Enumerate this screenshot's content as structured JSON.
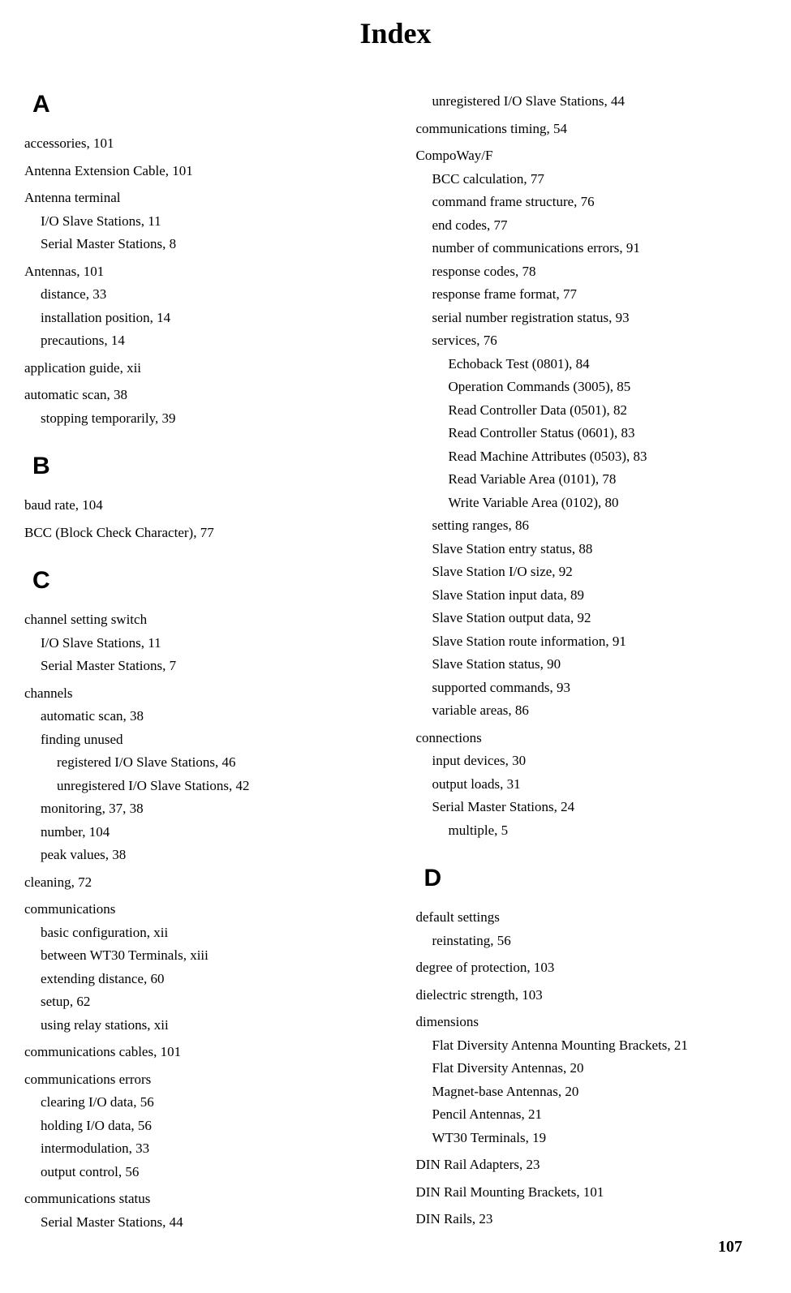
{
  "title": "Index",
  "pageNumber": "107",
  "columns": {
    "left": [
      {
        "letter": "A",
        "groups": [
          {
            "entries": [
              {
                "level": 0,
                "term": "accessories",
                "pages": "101"
              }
            ]
          },
          {
            "entries": [
              {
                "level": 0,
                "term": "Antenna Extension Cable",
                "pages": "101"
              }
            ]
          },
          {
            "entries": [
              {
                "level": 0,
                "term": "Antenna terminal",
                "pages": ""
              },
              {
                "level": 1,
                "term": "I/O Slave Stations",
                "pages": "11"
              },
              {
                "level": 1,
                "term": "Serial Master Stations",
                "pages": "8"
              }
            ]
          },
          {
            "entries": [
              {
                "level": 0,
                "term": "Antennas",
                "pages": "101"
              },
              {
                "level": 1,
                "term": "distance",
                "pages": "33"
              },
              {
                "level": 1,
                "term": "installation position",
                "pages": "14"
              },
              {
                "level": 1,
                "term": "precautions",
                "pages": "14"
              }
            ]
          },
          {
            "entries": [
              {
                "level": 0,
                "term": "application guide",
                "pages": "xii"
              }
            ]
          },
          {
            "entries": [
              {
                "level": 0,
                "term": "automatic scan",
                "pages": "38"
              },
              {
                "level": 1,
                "term": "stopping temporarily",
                "pages": "39"
              }
            ]
          }
        ]
      },
      {
        "letter": "B",
        "groups": [
          {
            "entries": [
              {
                "level": 0,
                "term": "baud rate",
                "pages": "104"
              }
            ]
          },
          {
            "entries": [
              {
                "level": 0,
                "term": "BCC (Block Check Character)",
                "pages": "77"
              }
            ]
          }
        ]
      },
      {
        "letter": "C",
        "groups": [
          {
            "entries": [
              {
                "level": 0,
                "term": "channel setting switch",
                "pages": ""
              },
              {
                "level": 1,
                "term": "I/O Slave Stations",
                "pages": "11"
              },
              {
                "level": 1,
                "term": "Serial Master Stations",
                "pages": "7"
              }
            ]
          },
          {
            "entries": [
              {
                "level": 0,
                "term": "channels",
                "pages": ""
              },
              {
                "level": 1,
                "term": "automatic scan",
                "pages": "38"
              },
              {
                "level": 1,
                "term": "finding unused",
                "pages": ""
              },
              {
                "level": 2,
                "term": "registered I/O Slave Stations",
                "pages": "46"
              },
              {
                "level": 2,
                "term": "unregistered I/O Slave Stations",
                "pages": "42"
              },
              {
                "level": 1,
                "term": "monitoring",
                "pages": "37, 38"
              },
              {
                "level": 1,
                "term": "number",
                "pages": "104"
              },
              {
                "level": 1,
                "term": "peak values",
                "pages": "38"
              }
            ]
          },
          {
            "entries": [
              {
                "level": 0,
                "term": "cleaning",
                "pages": "72"
              }
            ]
          },
          {
            "entries": [
              {
                "level": 0,
                "term": "communications",
                "pages": ""
              },
              {
                "level": 1,
                "term": "basic configuration",
                "pages": "xii"
              },
              {
                "level": 1,
                "term": "between WT30 Terminals",
                "pages": "xiii"
              },
              {
                "level": 1,
                "term": "extending distance",
                "pages": "60"
              },
              {
                "level": 1,
                "term": "setup",
                "pages": "62"
              },
              {
                "level": 1,
                "term": "using relay stations",
                "pages": "xii"
              }
            ]
          },
          {
            "entries": [
              {
                "level": 0,
                "term": "communications cables",
                "pages": "101"
              }
            ]
          },
          {
            "entries": [
              {
                "level": 0,
                "term": "communications errors",
                "pages": ""
              },
              {
                "level": 1,
                "term": "clearing I/O data",
                "pages": "56"
              },
              {
                "level": 1,
                "term": "holding I/O data",
                "pages": "56"
              },
              {
                "level": 1,
                "term": "intermodulation",
                "pages": "33"
              },
              {
                "level": 1,
                "term": "output control",
                "pages": "56"
              }
            ]
          },
          {
            "entries": [
              {
                "level": 0,
                "term": "communications status",
                "pages": ""
              },
              {
                "level": 1,
                "term": "Serial Master Stations",
                "pages": "44"
              }
            ]
          }
        ]
      }
    ],
    "right": [
      {
        "letter": "",
        "groups": [
          {
            "entries": [
              {
                "level": 1,
                "term": "unregistered I/O Slave Stations",
                "pages": "44"
              }
            ]
          },
          {
            "entries": [
              {
                "level": 0,
                "term": "communications timing",
                "pages": "54"
              }
            ]
          },
          {
            "entries": [
              {
                "level": 0,
                "term": "CompoWay/F",
                "pages": ""
              },
              {
                "level": 1,
                "term": "BCC calculation",
                "pages": "77"
              },
              {
                "level": 1,
                "term": "command frame structure",
                "pages": "76"
              },
              {
                "level": 1,
                "term": "end codes",
                "pages": "77"
              },
              {
                "level": 1,
                "term": "number of communications errors",
                "pages": "91"
              },
              {
                "level": 1,
                "term": "response codes",
                "pages": "78"
              },
              {
                "level": 1,
                "term": "response frame format",
                "pages": "77"
              },
              {
                "level": 1,
                "term": "serial number registration status",
                "pages": "93"
              },
              {
                "level": 1,
                "term": "services",
                "pages": "76"
              },
              {
                "level": 2,
                "term": "Echoback Test (0801)",
                "pages": "84"
              },
              {
                "level": 2,
                "term": "Operation Commands (3005)",
                "pages": "85"
              },
              {
                "level": 2,
                "term": "Read Controller Data (0501)",
                "pages": "82"
              },
              {
                "level": 2,
                "term": "Read Controller Status (0601)",
                "pages": "83"
              },
              {
                "level": 2,
                "term": "Read Machine Attributes (0503)",
                "pages": "83"
              },
              {
                "level": 2,
                "term": "Read Variable Area (0101)",
                "pages": "78"
              },
              {
                "level": 2,
                "term": "Write Variable Area (0102)",
                "pages": "80"
              },
              {
                "level": 1,
                "term": "setting ranges",
                "pages": "86"
              },
              {
                "level": 1,
                "term": "Slave Station entry status",
                "pages": "88"
              },
              {
                "level": 1,
                "term": "Slave Station I/O size",
                "pages": "92"
              },
              {
                "level": 1,
                "term": "Slave Station input data",
                "pages": "89"
              },
              {
                "level": 1,
                "term": "Slave Station output data",
                "pages": "92"
              },
              {
                "level": 1,
                "term": "Slave Station route information",
                "pages": "91"
              },
              {
                "level": 1,
                "term": "Slave Station status",
                "pages": "90"
              },
              {
                "level": 1,
                "term": "supported commands",
                "pages": "93"
              },
              {
                "level": 1,
                "term": "variable areas",
                "pages": "86"
              }
            ]
          },
          {
            "entries": [
              {
                "level": 0,
                "term": "connections",
                "pages": ""
              },
              {
                "level": 1,
                "term": "input devices",
                "pages": "30"
              },
              {
                "level": 1,
                "term": "output loads",
                "pages": "31"
              },
              {
                "level": 1,
                "term": "Serial Master Stations",
                "pages": "24"
              },
              {
                "level": 2,
                "term": "multiple",
                "pages": "5"
              }
            ]
          }
        ]
      },
      {
        "letter": "D",
        "groups": [
          {
            "entries": [
              {
                "level": 0,
                "term": "default settings",
                "pages": ""
              },
              {
                "level": 1,
                "term": "reinstating",
                "pages": "56"
              }
            ]
          },
          {
            "entries": [
              {
                "level": 0,
                "term": "degree of protection",
                "pages": "103"
              }
            ]
          },
          {
            "entries": [
              {
                "level": 0,
                "term": "dielectric strength",
                "pages": "103"
              }
            ]
          },
          {
            "entries": [
              {
                "level": 0,
                "term": "dimensions",
                "pages": ""
              },
              {
                "level": 1,
                "term": "Flat Diversity Antenna Mounting Brackets",
                "pages": "21"
              },
              {
                "level": 1,
                "term": "Flat Diversity Antennas",
                "pages": "20"
              },
              {
                "level": 1,
                "term": "Magnet-base Antennas",
                "pages": "20"
              },
              {
                "level": 1,
                "term": "Pencil Antennas",
                "pages": "21"
              },
              {
                "level": 1,
                "term": "WT30 Terminals",
                "pages": "19"
              }
            ]
          },
          {
            "entries": [
              {
                "level": 0,
                "term": "DIN Rail Adapters",
                "pages": "23"
              }
            ]
          },
          {
            "entries": [
              {
                "level": 0,
                "term": "DIN Rail Mounting Brackets",
                "pages": "101"
              }
            ]
          },
          {
            "entries": [
              {
                "level": 0,
                "term": "DIN Rails",
                "pages": "23"
              }
            ]
          }
        ]
      }
    ]
  }
}
